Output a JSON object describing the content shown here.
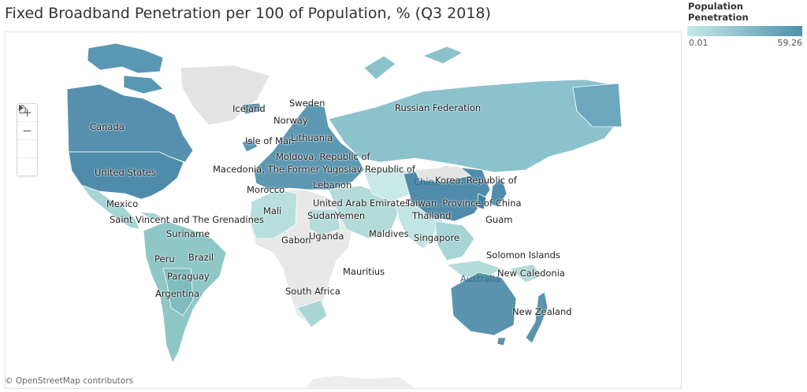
{
  "title": "Fixed Broadband Penetration per 100 of Population, % (Q3 2018)",
  "legend": {
    "title": "Population Penetration",
    "min": "0.01",
    "max": "59.26",
    "colors": {
      "low": "#c6ebe8",
      "high": "#4d8fae"
    }
  },
  "attribution": "© OpenStreetMap contributors",
  "controls": {
    "zoom_in": "+",
    "zoom_out": "−",
    "home": "home-icon",
    "expand": "play-icon"
  },
  "labels": {
    "iceland": "Iceland",
    "sweden": "Sweden",
    "norway": "Norway",
    "isle_of_man": "Isle of Man",
    "lithuania": "Lithuania",
    "russia": "Russian Federation",
    "canada": "Canada",
    "moldova": "Moldova, Republic of",
    "macedonia": "Macedonia, The Former Yugoslav Republic of",
    "united_states": "United States",
    "morocco": "Morocco",
    "lebanon": "Lebanon",
    "china": "China",
    "korea": "Korea, Republic of",
    "mexico": "Mexico",
    "uae": "United Arab Emirates",
    "taiwan": "Taiwan, Province of China",
    "svg": "Saint Vincent and The Grenadines",
    "mali": "Mali",
    "sudan": "Sudan",
    "yemen": "Yemen",
    "thailand": "Thailand",
    "guam": "Guam",
    "suriname": "Suriname",
    "maldives": "Maldives",
    "gabon": "Gabon",
    "uganda": "Uganda",
    "singapore": "Singapore",
    "brazil": "Brazil",
    "peru": "Peru",
    "solomon": "Solomon Islands",
    "paraguay": "Paraguay",
    "mauritius": "Mauritius",
    "australia": "Australia",
    "new_caledonia": "New Caledonia",
    "argentina": "Argentina",
    "south_africa": "South Africa",
    "new_zealand": "New Zealand"
  }
}
